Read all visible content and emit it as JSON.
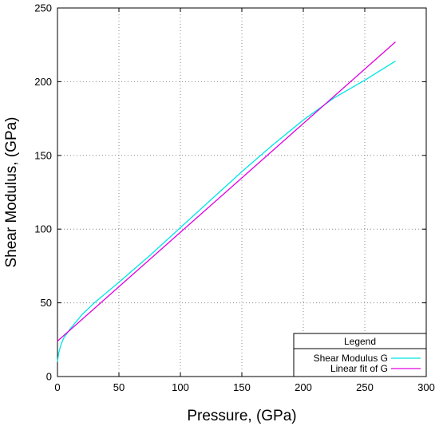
{
  "chart_data": {
    "type": "line",
    "xlabel": "Pressure, (GPa)",
    "ylabel": "Shear Modulus, (GPa)",
    "xlim": [
      0,
      300
    ],
    "ylim": [
      0,
      250
    ],
    "x_ticks": [
      0,
      50,
      100,
      150,
      200,
      250,
      300
    ],
    "y_ticks": [
      0,
      50,
      100,
      150,
      200,
      250
    ],
    "x_tick_labels": [
      "0",
      "50",
      "100",
      "150",
      "200",
      "250",
      "300"
    ],
    "y_tick_labels": [
      "0",
      "50",
      "100",
      "150",
      "200",
      "250"
    ],
    "grid": true,
    "legend": {
      "title": "Legend",
      "placement": "bottom-right"
    },
    "series": [
      {
        "name": "Shear Modulus G",
        "color": "#00e5e5",
        "x": [
          0,
          1,
          3,
          5,
          10,
          20,
          30,
          50,
          75,
          100,
          125,
          150,
          175,
          200,
          225,
          250,
          275
        ],
        "y": [
          10,
          16,
          22,
          26,
          32,
          42,
          50,
          64,
          82,
          101,
          120,
          139,
          157,
          174,
          189,
          201,
          214
        ]
      },
      {
        "name": "Linear fit of G",
        "color": "#e000e0",
        "x": [
          0,
          275
        ],
        "y": [
          24,
          227
        ]
      }
    ]
  }
}
